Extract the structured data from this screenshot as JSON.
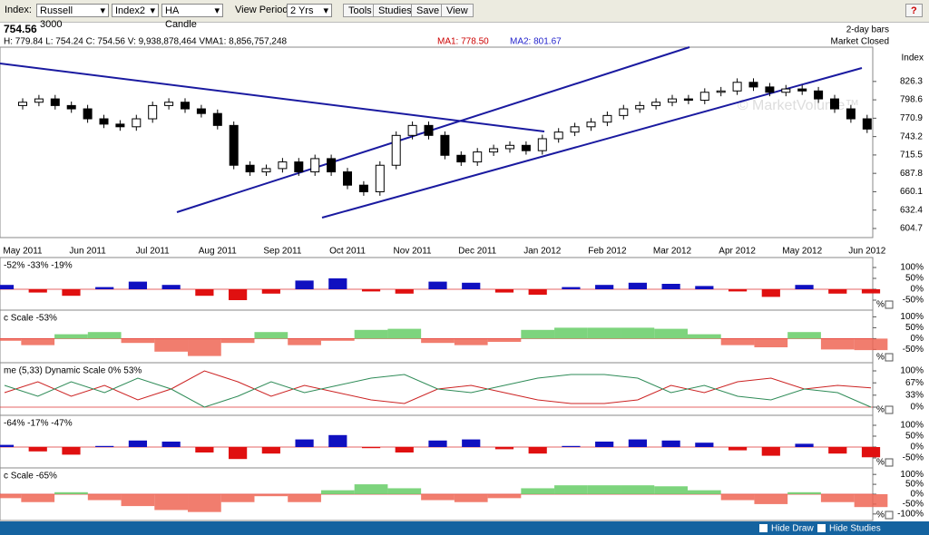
{
  "toolbar": {
    "index_label": "Index:",
    "index": "Russell 3000",
    "index2": "Index2",
    "chart_style": "HA Candle",
    "view_period_label": "View Period:",
    "view_period": "2 Yrs",
    "buttons": [
      "Tools",
      "Studies",
      "Save",
      "View"
    ],
    "help": "?"
  },
  "header": {
    "last": "754.56",
    "quote": "H: 779.84  L: 754.24  C: 754.56  V: 9,938,878,464  VMA1: 8,856,757,248",
    "ma1": "MA1: 778.50",
    "ma2": "MA2: 801.67",
    "bars": "2-day bars",
    "status": "Market Closed",
    "axis_label": "Index",
    "watermark": "© MarketVolume™"
  },
  "chart_data": [
    {
      "type": "candlestick",
      "categories": [
        "May 2011",
        null,
        null,
        null,
        "Jun 2011",
        null,
        null,
        null,
        "Jul 2011",
        null,
        null,
        null,
        "Aug 2011",
        null,
        null,
        null,
        "Sep 2011",
        null,
        null,
        null,
        "Oct 2011",
        null,
        null,
        null,
        "Nov 2011",
        null,
        null,
        null,
        "Dec 2011",
        null,
        null,
        null,
        "Jan 2012",
        null,
        null,
        null,
        "Feb 2012",
        null,
        null,
        null,
        "Mar 2012",
        null,
        null,
        null,
        "Apr 2012",
        null,
        null,
        null,
        "May 2012",
        null,
        null,
        null,
        "Jun 2012"
      ],
      "open": [
        790,
        795,
        800,
        790,
        785,
        770,
        762,
        758,
        770,
        790,
        795,
        785,
        778,
        760,
        700,
        690,
        695,
        705,
        690,
        710,
        690,
        670,
        660,
        700,
        745,
        760,
        745,
        715,
        705,
        720,
        725,
        730,
        722,
        740,
        750,
        758,
        765,
        775,
        785,
        790,
        795,
        800,
        798,
        810,
        812,
        825,
        818,
        810,
        815,
        812,
        800,
        785,
        770
      ],
      "high": [
        801,
        806,
        806,
        796,
        791,
        776,
        768,
        776,
        796,
        801,
        801,
        791,
        784,
        766,
        706,
        701,
        711,
        711,
        716,
        716,
        696,
        676,
        706,
        751,
        766,
        766,
        751,
        721,
        726,
        731,
        736,
        736,
        746,
        756,
        764,
        771,
        781,
        791,
        796,
        801,
        806,
        806,
        816,
        818,
        831,
        831,
        824,
        821,
        821,
        818,
        806,
        791,
        776
      ],
      "low": [
        784,
        789,
        784,
        779,
        764,
        756,
        752,
        752,
        764,
        784,
        779,
        772,
        754,
        694,
        684,
        684,
        689,
        684,
        684,
        684,
        664,
        654,
        654,
        694,
        739,
        739,
        709,
        699,
        699,
        714,
        719,
        716,
        716,
        734,
        744,
        752,
        759,
        769,
        779,
        784,
        789,
        792,
        792,
        804,
        806,
        812,
        804,
        804,
        806,
        794,
        779,
        764,
        748.56
      ],
      "close": [
        795,
        800,
        790,
        785,
        770,
        762,
        758,
        770,
        790,
        795,
        785,
        778,
        760,
        700,
        690,
        695,
        705,
        690,
        710,
        690,
        670,
        660,
        700,
        745,
        760,
        745,
        715,
        705,
        720,
        725,
        730,
        722,
        740,
        750,
        758,
        765,
        775,
        785,
        790,
        795,
        800,
        798,
        810,
        812,
        825,
        818,
        810,
        815,
        812,
        800,
        785,
        770,
        754.56
      ],
      "up_color": "#ffffff",
      "down_color": "#000000",
      "ylim": [
        591,
        878
      ],
      "yticks": [
        826.3,
        798.6,
        770.9,
        743.2,
        715.5,
        687.8,
        660.1,
        632.4,
        604.7
      ]
    },
    {
      "type": "bar",
      "legend": "-52%   -33%   -19%",
      "pos_color": "#1010c0",
      "neg_color": "#e01010",
      "values": [
        20,
        -15,
        -30,
        10,
        35,
        20,
        -30,
        -50,
        -20,
        40,
        50,
        -10,
        -20,
        35,
        30,
        -15,
        -25,
        10,
        20,
        30,
        25,
        15,
        -10,
        -35,
        20,
        -20,
        -19
      ],
      "ylim": [
        -75,
        125
      ],
      "yticks": [
        {
          "value": 100,
          "label": "100%"
        },
        {
          "value": 50,
          "label": "50%"
        },
        {
          "value": 0,
          "label": "0%"
        },
        {
          "value": -50,
          "label": "-50%"
        }
      ],
      "scale_toggle": "%"
    },
    {
      "type": "area",
      "legend": "c Scale   -53%",
      "pos_color": "#66cc66",
      "neg_color": "#ee6655",
      "values": [
        -10,
        -30,
        20,
        30,
        -20,
        -60,
        -80,
        -20,
        30,
        -30,
        -10,
        40,
        45,
        -20,
        -30,
        -15,
        40,
        50,
        50,
        50,
        45,
        20,
        -30,
        -40,
        30,
        -50,
        -53
      ],
      "ylim": [
        -90,
        110
      ],
      "yticks": [
        {
          "value": 100,
          "label": "100%"
        },
        {
          "value": 50,
          "label": "50%"
        },
        {
          "value": 0,
          "label": "0%"
        },
        {
          "value": -50,
          "label": "-50%"
        }
      ],
      "scale_toggle": "%"
    },
    {
      "type": "line",
      "legend": "me  (5,33)  Dynamic Scale   0%   53%",
      "series": [
        {
          "color": "#cc2222",
          "values": [
            40,
            70,
            30,
            60,
            20,
            50,
            100,
            70,
            30,
            60,
            40,
            20,
            10,
            50,
            60,
            40,
            20,
            10,
            10,
            20,
            60,
            40,
            70,
            80,
            50,
            60,
            53
          ]
        },
        {
          "color": "#2e8b57",
          "values": [
            60,
            30,
            70,
            40,
            80,
            50,
            0,
            30,
            70,
            40,
            60,
            80,
            90,
            50,
            40,
            60,
            80,
            90,
            90,
            80,
            40,
            60,
            30,
            20,
            50,
            40,
            0
          ]
        }
      ],
      "ylim": [
        -10,
        110
      ],
      "yticks": [
        {
          "value": 100,
          "label": "100%"
        },
        {
          "value": 67,
          "label": "67%"
        },
        {
          "value": 33,
          "label": "33%"
        },
        {
          "value": 0,
          "label": "0%"
        }
      ],
      "scale_toggle": "%"
    },
    {
      "type": "bar",
      "legend": "-64%   -17%   -47%",
      "pos_color": "#1010c0",
      "neg_color": "#e01010",
      "values": [
        10,
        -20,
        -35,
        5,
        30,
        25,
        -25,
        -55,
        -30,
        35,
        55,
        -5,
        -25,
        30,
        35,
        -10,
        -30,
        5,
        25,
        35,
        30,
        20,
        -15,
        -40,
        15,
        -30,
        -47
      ],
      "ylim": [
        -75,
        125
      ],
      "yticks": [
        {
          "value": 100,
          "label": "100%"
        },
        {
          "value": 50,
          "label": "50%"
        },
        {
          "value": 0,
          "label": "0%"
        },
        {
          "value": -50,
          "label": "-50%"
        }
      ],
      "scale_toggle": "%"
    },
    {
      "type": "area",
      "legend": "c Scale   -65%",
      "pos_color": "#66cc66",
      "neg_color": "#ee6655",
      "values": [
        -20,
        -40,
        10,
        -30,
        -60,
        -80,
        -90,
        -40,
        -10,
        -40,
        20,
        50,
        30,
        -30,
        -40,
        -20,
        30,
        45,
        45,
        45,
        40,
        20,
        -30,
        -50,
        10,
        -40,
        -65
      ],
      "ylim": [
        -110,
        110
      ],
      "yticks": [
        {
          "value": 100,
          "label": "100%"
        },
        {
          "value": 50,
          "label": "50%"
        },
        {
          "value": 0,
          "label": "0%"
        },
        {
          "value": -50,
          "label": "-50%"
        },
        {
          "value": -100,
          "label": "-100%"
        }
      ],
      "scale_toggle": "%"
    }
  ],
  "footer": {
    "hide_draw": "Hide Draw",
    "hide_studies": "Hide Studies"
  }
}
